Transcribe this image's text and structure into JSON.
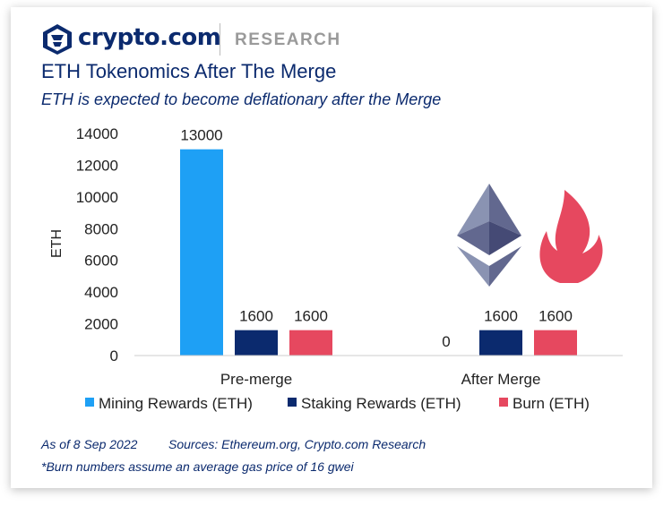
{
  "header": {
    "brand": "crypto.com",
    "section": "RESEARCH",
    "title": "ETH Tokenomics After The Merge",
    "subtitle": "ETH is expected to become deflationary after the Merge"
  },
  "chart_data": {
    "type": "bar",
    "title": "",
    "xlabel": "",
    "ylabel": "ETH",
    "ylim": [
      0,
      14000
    ],
    "yticks": [
      0,
      2000,
      4000,
      6000,
      8000,
      10000,
      12000,
      14000
    ],
    "categories": [
      "Pre-merge",
      "After Merge"
    ],
    "series": [
      {
        "name": "Mining Rewards (ETH)",
        "values": [
          13000,
          0
        ],
        "color": "#1ea0f5"
      },
      {
        "name": "Staking Rewards (ETH)",
        "values": [
          1600,
          1600
        ],
        "color": "#0b2a6e"
      },
      {
        "name": "Burn (ETH)",
        "values": [
          1600,
          1600
        ],
        "color": "#e6485f"
      }
    ],
    "grid": false,
    "legend": "bottom",
    "icons": [
      "ethereum-logo-icon",
      "flame-icon"
    ]
  },
  "footer": {
    "date": "As of 8 Sep 2022",
    "sources": "Sources: Ethereum.org, Crypto.com Research",
    "note": "*Burn numbers assume an average gas price of 16 gwei"
  }
}
